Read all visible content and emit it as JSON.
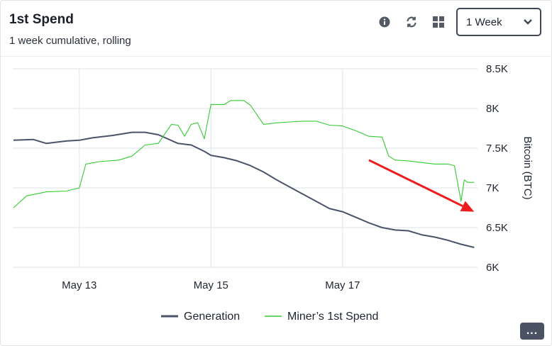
{
  "header": {
    "title": "1st Spend",
    "subtitle": "1 week cumulative, rolling"
  },
  "toolbar": {
    "icons": [
      "info-icon",
      "refresh-icon",
      "grid-icon"
    ],
    "range_select": "1 Week"
  },
  "more_label": "...",
  "colors": {
    "generation": "#4a5468",
    "spend": "#33cc33",
    "arrow": "#ee1c1c",
    "grid": "#dfe2e8"
  },
  "chart_data": {
    "type": "line",
    "title": "1st Spend",
    "subtitle": "1 week cumulative, rolling",
    "ylabel": "Bitcoin (BTC)",
    "ylim": [
      6000,
      8500
    ],
    "yticks": [
      6000,
      6500,
      7000,
      7500,
      8000,
      8500
    ],
    "ytick_labels": [
      "6K",
      "6.5K",
      "7K",
      "7.5K",
      "8K",
      "8.5K"
    ],
    "xlim": [
      12.0,
      19.05
    ],
    "xticks": [
      13,
      15,
      17
    ],
    "xtick_labels": [
      "May 13",
      "May 15",
      "May 17"
    ],
    "grid": true,
    "legend_position": "bottom",
    "series": [
      {
        "name": "Generation",
        "x": [
          12.0,
          12.3,
          12.5,
          12.8,
          13.0,
          13.2,
          13.5,
          13.8,
          14.0,
          14.2,
          14.5,
          14.7,
          14.9,
          15.0,
          15.2,
          15.4,
          15.6,
          15.8,
          16.0,
          16.2,
          16.4,
          16.6,
          16.8,
          17.0,
          17.2,
          17.4,
          17.6,
          17.8,
          18.0,
          18.2,
          18.4,
          18.6,
          18.8,
          19.0
        ],
        "values": [
          7600,
          7610,
          7560,
          7590,
          7600,
          7630,
          7660,
          7700,
          7700,
          7670,
          7560,
          7540,
          7460,
          7410,
          7380,
          7340,
          7280,
          7200,
          7100,
          7010,
          6920,
          6830,
          6740,
          6700,
          6630,
          6560,
          6500,
          6470,
          6460,
          6410,
          6380,
          6340,
          6290,
          6250
        ]
      },
      {
        "name": "Miner’s 1st Spend",
        "x": [
          12.0,
          12.2,
          12.5,
          12.8,
          13.0,
          13.1,
          13.3,
          13.6,
          13.8,
          14.0,
          14.2,
          14.4,
          14.5,
          14.6,
          14.7,
          14.8,
          14.9,
          15.0,
          15.2,
          15.3,
          15.5,
          15.6,
          15.8,
          16.0,
          16.2,
          16.4,
          16.6,
          16.8,
          17.0,
          17.2,
          17.4,
          17.6,
          17.7,
          17.8,
          18.0,
          18.2,
          18.4,
          18.6,
          18.7,
          18.8,
          18.85,
          18.9,
          19.0
        ],
        "values": [
          6750,
          6900,
          6950,
          6960,
          7000,
          7300,
          7330,
          7350,
          7400,
          7540,
          7560,
          7800,
          7790,
          7650,
          7800,
          7820,
          7620,
          8050,
          8050,
          8100,
          8100,
          8040,
          7800,
          7820,
          7830,
          7840,
          7840,
          7790,
          7780,
          7720,
          7650,
          7640,
          7400,
          7350,
          7340,
          7320,
          7300,
          7300,
          7280,
          6830,
          7100,
          7070,
          7070
        ]
      }
    ],
    "annotations": [
      {
        "type": "arrow",
        "from": [
          17.4,
          7350
        ],
        "to": [
          19.0,
          6700
        ]
      }
    ]
  }
}
